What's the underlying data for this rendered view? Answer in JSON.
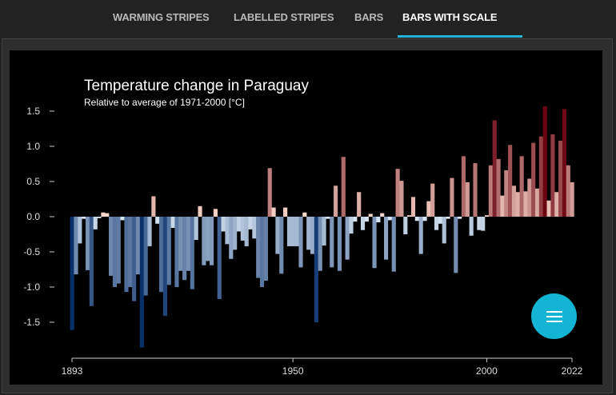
{
  "tabs": [
    {
      "label": "WARMING STRIPES",
      "active": false
    },
    {
      "label": "LABELLED STRIPES",
      "active": false
    },
    {
      "label": "BARS",
      "active": false
    },
    {
      "label": "BARS WITH SCALE",
      "active": true
    }
  ],
  "colors": {
    "accent": "#1fb4d2",
    "cold_dark": "#08306b",
    "cold_light": "#deebf7",
    "warm_light": "#fee0d2",
    "warm_dark": "#67000d"
  },
  "menu_button": {
    "icon": "hamburger-menu-icon"
  },
  "chart_data": {
    "type": "bar",
    "title": "Temperature change in Paraguay",
    "subtitle": "Relative to average of 1971-2000  [°C]",
    "ylim": [
      -1.9,
      1.6
    ],
    "y_ticks": [
      "1.5",
      "1.0",
      "0.5",
      "0.0",
      "-0.5",
      "-1.0",
      "-1.5"
    ],
    "x_ticks": [
      "1893",
      "1950",
      "2000",
      "2022"
    ],
    "grid": false,
    "x_start": 1893,
    "x_end": 2022,
    "values": [
      -1.61,
      -0.82,
      -0.38,
      -0.03,
      -0.76,
      -1.27,
      -0.18,
      -0.02,
      0.06,
      0.05,
      -0.84,
      -1.0,
      -0.95,
      -0.05,
      -1.07,
      -1.0,
      -1.2,
      -0.82,
      -1.86,
      -1.12,
      -0.42,
      0.29,
      -0.1,
      -1.07,
      -1.41,
      -0.97,
      -0.16,
      -1.0,
      -0.77,
      -0.9,
      -0.77,
      -1.03,
      -0.33,
      0.15,
      -0.69,
      -0.63,
      -0.69,
      0.11,
      -1.17,
      -0.21,
      -0.39,
      -0.6,
      -0.47,
      -0.21,
      -0.34,
      -0.42,
      -0.18,
      -0.31,
      -0.87,
      -1.0,
      -0.91,
      0.69,
      0.13,
      -0.53,
      -0.81,
      0.13,
      -0.42,
      -0.42,
      -0.42,
      -0.72,
      0.06,
      -0.47,
      -0.53,
      -1.5,
      -0.77,
      -0.41,
      -0.03,
      -0.72,
      0.44,
      -0.77,
      0.85,
      -0.61,
      -0.24,
      -0.07,
      0.35,
      -0.19,
      -0.07,
      0.04,
      -0.73,
      -0.08,
      0.05,
      -0.61,
      -0.05,
      -0.78,
      0.68,
      0.51,
      -0.25,
      0.02,
      0.28,
      -0.06,
      -0.53,
      -0.06,
      0.22,
      0.47,
      -0.19,
      -0.1,
      -0.38,
      -0.03,
      0.55,
      -0.8,
      -0.03,
      0.86,
      0.49,
      -0.27,
      0.76,
      -0.19,
      -0.2,
      0.02,
      0.73,
      1.37,
      0.82,
      0.3,
      0.66,
      1.02,
      0.44,
      0.35,
      0.86,
      0.36,
      0.54,
      1.05,
      0.4,
      1.14,
      1.57,
      0.23,
      1.17,
      0.35,
      1.08,
      1.53,
      0.73,
      0.49
    ]
  }
}
